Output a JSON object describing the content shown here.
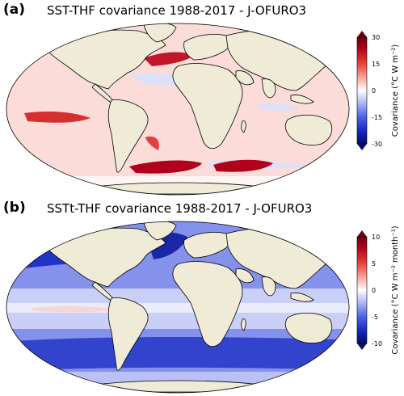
{
  "panel_a": {
    "label": "(a)",
    "title": "SST-THF covariance 1988-2017 - J-OFURO3",
    "colorbar": {
      "ticks": [
        "30",
        "15",
        "0",
        "-15",
        "-30"
      ],
      "label": "Covariance (°C W m⁻²)",
      "range": [
        -30,
        30
      ]
    }
  },
  "panel_b": {
    "label": "(b)",
    "title": "SSTt-THF covariance 1988-2017 - J-OFURO3",
    "colorbar": {
      "ticks": [
        "10",
        "5",
        "0",
        "-5",
        "-10"
      ],
      "label": "Covariance (°C W m⁻² month⁻¹)",
      "range": [
        -10,
        10
      ]
    }
  },
  "colors": {
    "land": "#efebd7",
    "pos_strong": "#b0001c",
    "pos_light": "#fbd6d2",
    "neg_strong": "#0c1a8f",
    "neg_light": "#d7dcfb"
  }
}
